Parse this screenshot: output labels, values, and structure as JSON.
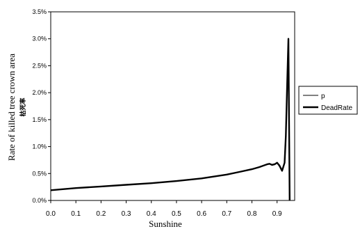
{
  "chart_data": {
    "type": "line",
    "xlabel": "Sunshine",
    "ylabel": "Rate of killed tree crown area",
    "ylabel_sub": "枯死率",
    "xlim": [
      0.0,
      0.97
    ],
    "ylim": [
      0.0,
      0.035
    ],
    "x_ticks": [
      0.0,
      0.1,
      0.2,
      0.3,
      0.4,
      0.5,
      0.6,
      0.7,
      0.8,
      0.9
    ],
    "x_tick_labels": [
      "0.0",
      "0.1",
      "0.2",
      "0.3",
      "0.4",
      "0.5",
      "0.6",
      "0.7",
      "0.8",
      "0.9"
    ],
    "y_ticks": [
      0.0,
      0.005,
      0.01,
      0.015,
      0.02,
      0.025,
      0.03,
      0.035
    ],
    "y_tick_labels": [
      "0.0%",
      "0.5%",
      "1.0%",
      "1.5%",
      "2.0%",
      "2.5%",
      "3.0%",
      "3.5%"
    ],
    "grid": false,
    "legend_position": "right",
    "series": [
      {
        "name": "p",
        "color": "#000000",
        "style": "thin",
        "x": [
          0.0,
          0.1,
          0.2,
          0.3,
          0.4,
          0.5,
          0.6,
          0.7,
          0.75,
          0.8,
          0.83,
          0.86,
          0.87,
          0.88,
          0.89,
          0.9,
          0.91,
          0.92,
          0.93,
          0.935,
          0.94,
          0.945,
          0.95
        ],
        "y": [
          0.0019,
          0.0023,
          0.0026,
          0.0029,
          0.0032,
          0.0036,
          0.0041,
          0.0048,
          0.0053,
          0.0058,
          0.0062,
          0.0067,
          0.0068,
          0.0067,
          0.0068,
          0.007,
          0.0066,
          0.0057,
          0.0072,
          0.0125,
          0.0215,
          0.0298,
          0.0
        ]
      },
      {
        "name": "DeadRate",
        "color": "#000000",
        "style": "thick",
        "x": [
          0.0,
          0.1,
          0.2,
          0.3,
          0.4,
          0.5,
          0.6,
          0.7,
          0.75,
          0.8,
          0.83,
          0.86,
          0.87,
          0.88,
          0.89,
          0.9,
          0.91,
          0.92,
          0.93,
          0.935,
          0.94,
          0.945,
          0.95
        ],
        "y": [
          0.0019,
          0.0023,
          0.0026,
          0.0029,
          0.0032,
          0.0036,
          0.0041,
          0.0048,
          0.0053,
          0.0058,
          0.0062,
          0.0067,
          0.0068,
          0.0066,
          0.0067,
          0.007,
          0.0064,
          0.0055,
          0.007,
          0.012,
          0.021,
          0.03,
          0.0
        ]
      }
    ]
  }
}
